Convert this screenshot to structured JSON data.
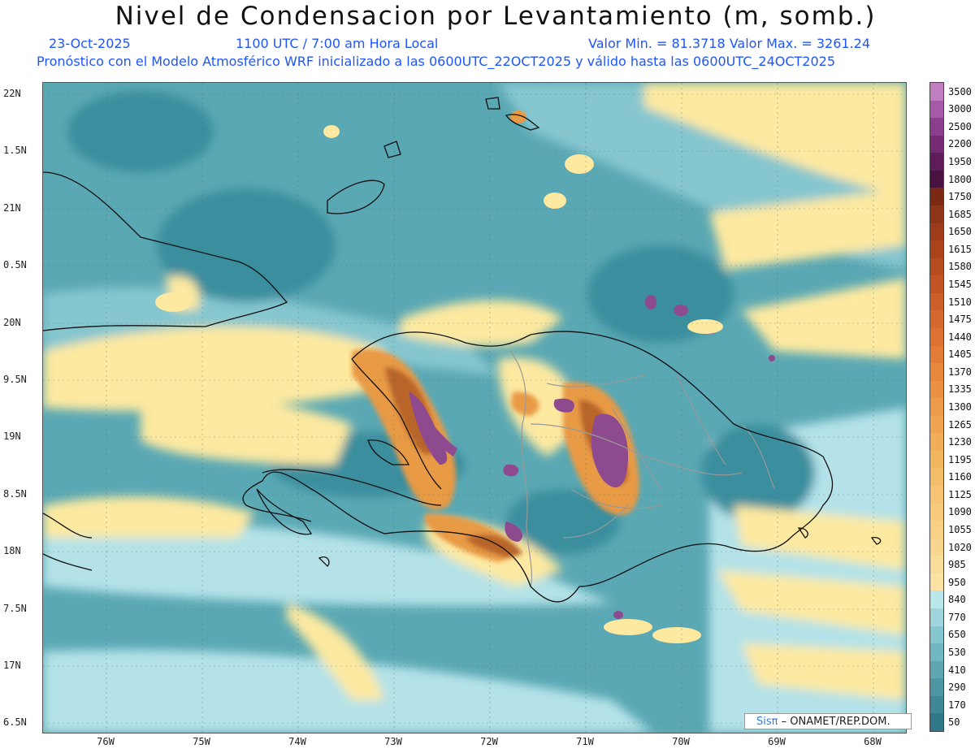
{
  "header": {
    "title": "Nivel de Condensacion por Levantamiento (m, somb.)",
    "date": "23-Oct-2025",
    "time": "1100 UTC / 7:00 am Hora Local",
    "minmax": "Valor Min. = 81.3718  Valor Max. = 3261.24",
    "info": "Pronóstico con el Modelo Atmosférico WRF inicializado a las 0600UTC_22OCT2025 y válido hasta las  0600UTC_24OCT2025"
  },
  "map": {
    "lat_labels": [
      "22N",
      "1.5N",
      "21N",
      "0.5N",
      "20N",
      "9.5N",
      "19N",
      "8.5N",
      "18N",
      "7.5N",
      "17N",
      "6.5N"
    ],
    "lon_labels": [
      "76W",
      "75W",
      "74W",
      "73W",
      "72W",
      "71W",
      "70W",
      "69W",
      "68W"
    ],
    "colors": {
      "ocean_deep": "#3a8e9e",
      "ocean": "#5aa8b4",
      "ocean_light": "#86c6cf",
      "ocean_pale": "#b4e2e8",
      "dry_band": "#fde9a0",
      "orange": "#e89a45",
      "brown": "#b9652a",
      "purple": "#8e4a8e",
      "coast": "#111111",
      "border": "#999999"
    }
  },
  "credit": {
    "brand": "Sisπ",
    "text": " – ONAMET/REP.DOM."
  },
  "colorbar": {
    "labels": [
      "3500",
      "3000",
      "2500",
      "2200",
      "1950",
      "1800",
      "1750",
      "1685",
      "1650",
      "1615",
      "1580",
      "1545",
      "1510",
      "1475",
      "1440",
      "1405",
      "1370",
      "1335",
      "1300",
      "1265",
      "1230",
      "1195",
      "1160",
      "1125",
      "1090",
      "1055",
      "1020",
      "985",
      "950",
      "840",
      "770",
      "650",
      "530",
      "410",
      "290",
      "170",
      "50"
    ],
    "colors": [
      "#c07dc0",
      "#a45aa6",
      "#8a3f8c",
      "#742b73",
      "#5e1d5a",
      "#4a1240",
      "#7a2a14",
      "#8e3417",
      "#9e3c19",
      "#ab441c",
      "#b74d1f",
      "#c25523",
      "#cc5e27",
      "#d5682c",
      "#dc7231",
      "#e27c36",
      "#e6873c",
      "#ea9142",
      "#ed9b49",
      "#efa550",
      "#f1ae58",
      "#f3b660",
      "#f4bd69",
      "#f6c472",
      "#f7ca7c",
      "#f8d086",
      "#f9d68f",
      "#fadc99",
      "#fbe2a4",
      "#b9e7ec",
      "#9fd6dd",
      "#86c6cf",
      "#72b6c1",
      "#5fa6b2",
      "#4e96a4",
      "#3f8797",
      "#30778a"
    ]
  }
}
